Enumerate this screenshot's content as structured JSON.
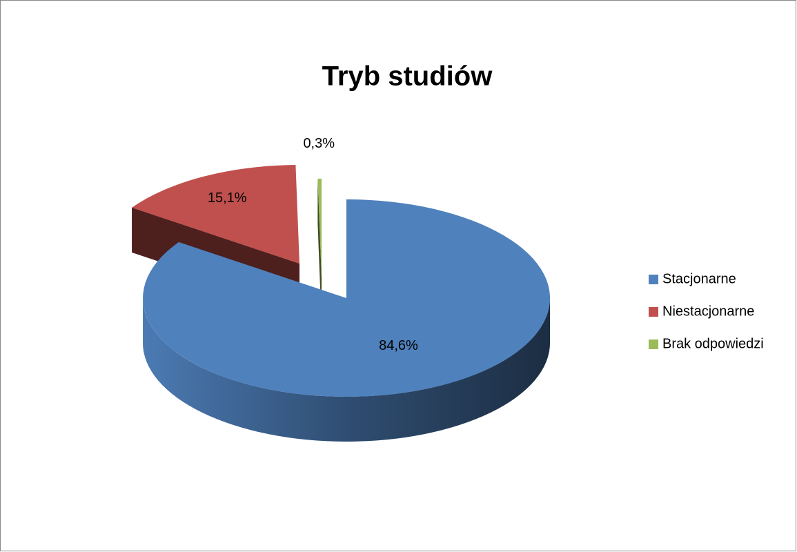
{
  "chart_data": {
    "type": "pie",
    "title": "Tryb studiów",
    "categories": [
      "Stacjonarne",
      "Niestacjonarne",
      "Brak odpowiedzi"
    ],
    "values": [
      84.6,
      15.1,
      0.3
    ],
    "value_labels": [
      "84,6%",
      "15,1%",
      "0,3%"
    ],
    "colors": [
      "#4f81bd",
      "#c0504d",
      "#9bbb59"
    ],
    "legend": "right"
  }
}
